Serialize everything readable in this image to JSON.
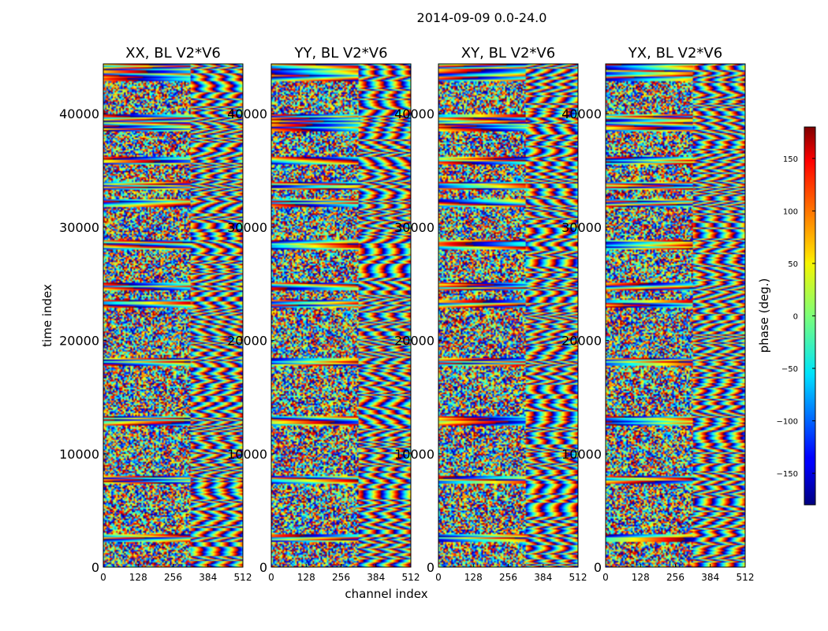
{
  "chart_data": {
    "type": "heatmap",
    "title": "2014-09-09 0.0-24.0",
    "xlabel": "channel index",
    "ylabel": "time index",
    "xlim": [
      0,
      512
    ],
    "ylim": [
      0,
      44400
    ],
    "x_ticks": [
      0,
      128,
      256,
      384,
      512
    ],
    "y_ticks": [
      0,
      10000,
      20000,
      30000,
      40000
    ],
    "panels": [
      {
        "title": "XX, BL V2*V6"
      },
      {
        "title": "YY, BL V2*V6"
      },
      {
        "title": "XY, BL V2*V6"
      },
      {
        "title": "YX, BL V2*V6"
      }
    ],
    "colorbar": {
      "label": "phase (deg.)",
      "range": [
        -180,
        180
      ],
      "ticks": [
        -150,
        -100,
        -50,
        0,
        50,
        100,
        150
      ],
      "colormap": "jet"
    }
  }
}
